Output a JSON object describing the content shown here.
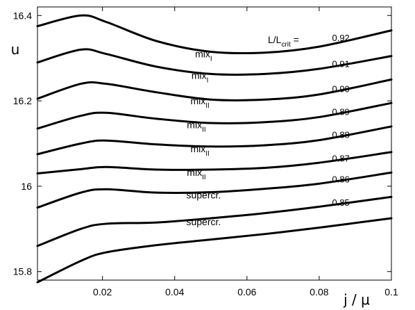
{
  "chart_data": {
    "type": "line",
    "xlabel": "j / μ",
    "ylabel": "u",
    "xlim": [
      0.002,
      0.1
    ],
    "ylim": [
      15.78,
      16.42
    ],
    "x_ticks": [
      0.02,
      0.04,
      0.06,
      0.08,
      0.1
    ],
    "x_tick_labels": [
      "0.02",
      "0.04",
      "0.06",
      "0.08",
      "0.1"
    ],
    "y_ticks": [
      15.8,
      16.0,
      16.2,
      16.4
    ],
    "y_tick_labels": [
      "15.8",
      "16",
      "16.2",
      "16.4"
    ],
    "legend_title": {
      "main": "L/L",
      "sub": "crit",
      "tail": " ="
    },
    "grid": false,
    "x": [
      0.002,
      0.014,
      0.021,
      0.035,
      0.05,
      0.065,
      0.08,
      0.1
    ],
    "series": [
      {
        "values": [
          16.375,
          16.4,
          16.385,
          16.34,
          16.315,
          16.313,
          16.327,
          16.365
        ]
      },
      {
        "values": [
          16.29,
          16.32,
          16.31,
          16.28,
          16.263,
          16.263,
          16.275,
          16.305
        ]
      },
      {
        "values": [
          16.205,
          16.24,
          16.24,
          16.22,
          16.203,
          16.203,
          16.215,
          16.25
        ]
      },
      {
        "values": [
          16.135,
          16.165,
          16.172,
          16.158,
          16.148,
          16.15,
          16.162,
          16.195
        ]
      },
      {
        "values": [
          16.075,
          16.1,
          16.107,
          16.098,
          16.093,
          16.096,
          16.108,
          16.14
        ]
      },
      {
        "values": [
          16.03,
          16.04,
          16.045,
          16.039,
          16.039,
          16.043,
          16.055,
          16.08
        ]
      },
      {
        "values": [
          15.95,
          15.985,
          15.993,
          15.985,
          15.986,
          15.994,
          16.006,
          16.032
        ]
      },
      {
        "values": [
          15.86,
          15.9,
          15.912,
          15.915,
          15.925,
          15.937,
          15.952,
          15.975
        ]
      },
      {
        "values": [
          15.775,
          15.825,
          15.845,
          15.862,
          15.875,
          15.888,
          15.903,
          15.925
        ]
      }
    ],
    "curve_labels": [
      {
        "main": "mix",
        "sub": "I"
      },
      {
        "main": "mix",
        "sub": "I"
      },
      {
        "main": "mix",
        "sub": "II"
      },
      {
        "main": "mix",
        "sub": "II"
      },
      {
        "main": "mix",
        "sub": "II"
      },
      {
        "main": "mix",
        "sub": "II"
      },
      {
        "main": "supercr.",
        "sub": ""
      },
      {
        "main": "supercr.",
        "sub": ""
      }
    ],
    "value_labels": [
      "0.92",
      "0.91",
      "0.90",
      "0.89",
      "0.88",
      "0.87",
      "0.86",
      "0.85"
    ]
  }
}
